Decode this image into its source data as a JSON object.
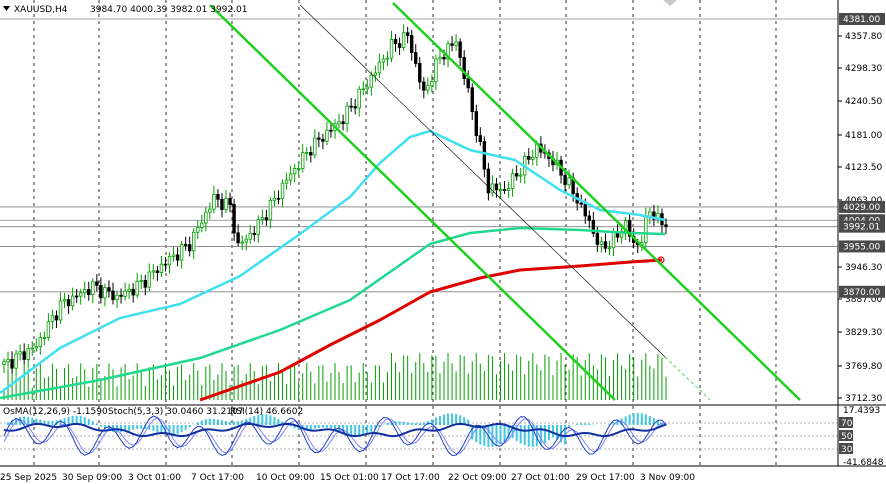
{
  "header": {
    "symbol": "XAUUSD,H4",
    "ohlc": "3984.70 4000.39 3982.01 3992.01"
  },
  "indicators": {
    "osma": "OsMA(12,26,9) -1.1590",
    "stoch": "Stoch(5,3,3) 30.0460 31.2107",
    "rsi": "RSI(14) 46.6602"
  },
  "price_axis": {
    "ticks": [
      "4357.80",
      "4298.30",
      "4240.50",
      "4181.00",
      "4123.50",
      "4063.00",
      "3946.30",
      "3887.00",
      "3829.30",
      "3769.80",
      "3712.30"
    ],
    "tags": [
      {
        "text": "4381.00",
        "price": 4381,
        "color": "#4a4a4a"
      },
      {
        "text": "4029.00",
        "price": 4029,
        "color": "#4a4a4a"
      },
      {
        "text": "4004.00",
        "price": 4004,
        "color": "#4a4a4a"
      },
      {
        "text": "3992.01",
        "price": 3992.01,
        "color": "#4a4a4a"
      },
      {
        "text": "3955.00",
        "price": 3955,
        "color": "#4a4a4a"
      },
      {
        "text": "3870.00",
        "price": 3870,
        "color": "#4a4a4a"
      }
    ]
  },
  "osc_axis": {
    "top": "17.4393",
    "bottom": "-41.6848",
    "levels": [
      "70",
      "50",
      "30"
    ]
  },
  "time_axis": [
    "25 Sep 2025",
    "30 Sep 09:00",
    "3 Oct 01:00",
    "7 Oct 17:00",
    "10 Oct 09:00",
    "15 Oct 01:00",
    "17 Oct 17:00",
    "22 Oct 09:00",
    "27 Oct 01:00",
    "29 Oct 17:00",
    "3 Nov 09:00"
  ],
  "colors": {
    "bull": "#00a000",
    "bear": "#000000",
    "ma_fast": "#40e0f0",
    "ma_mid": "#20d890",
    "ma_slow": "#e00000",
    "channel": "#20d020",
    "histogram": "#40c8e0",
    "stoch_main": "#2040c0",
    "stoch_signal": "#8080ff"
  }
}
